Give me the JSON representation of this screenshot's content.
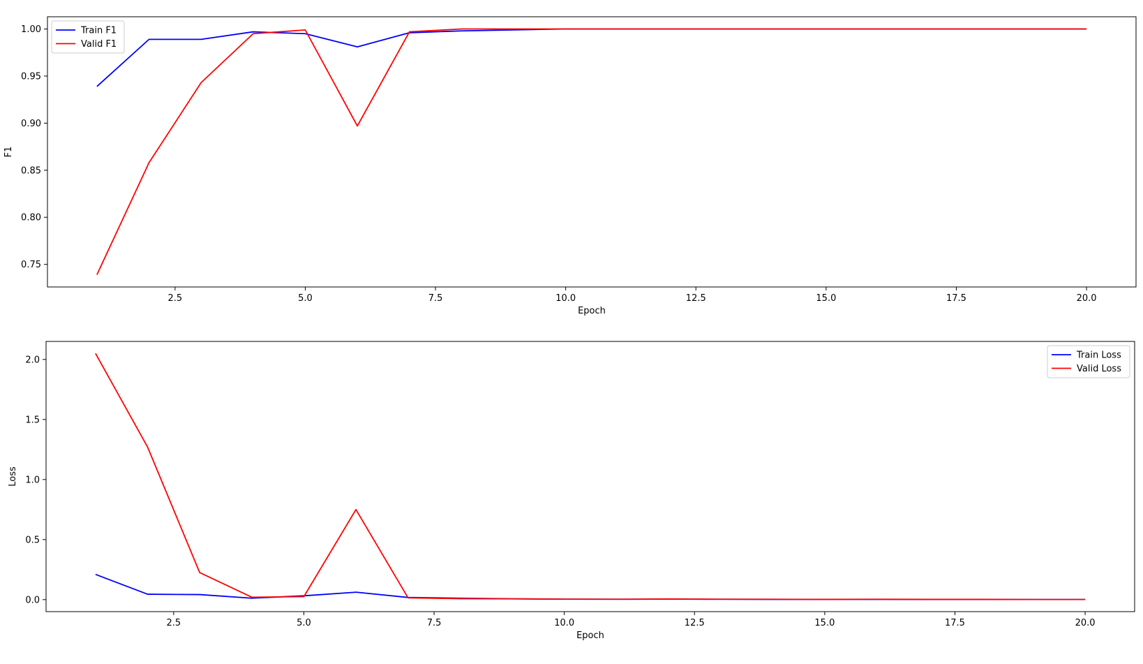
{
  "chart_data": [
    {
      "type": "line",
      "xlabel": "Epoch",
      "ylabel": "F1",
      "xlim": [
        0.05,
        20.95
      ],
      "ylim": [
        0.726,
        1.013
      ],
      "xticks": [
        2.5,
        5.0,
        7.5,
        10.0,
        12.5,
        15.0,
        17.5,
        20.0
      ],
      "xtick_labels": [
        "2.5",
        "5.0",
        "7.5",
        "10.0",
        "12.5",
        "15.0",
        "17.5",
        "20.0"
      ],
      "yticks": [
        0.75,
        0.8,
        0.85,
        0.9,
        0.95,
        1.0
      ],
      "ytick_labels": [
        "0.75",
        "0.80",
        "0.85",
        "0.90",
        "0.95",
        "1.00"
      ],
      "grid": false,
      "legend_position": "upper-left",
      "x": [
        1,
        2,
        3,
        4,
        5,
        6,
        7,
        8,
        9,
        10,
        11,
        12,
        13,
        14,
        15,
        16,
        17,
        18,
        19,
        20
      ],
      "series": [
        {
          "name": "Train F1",
          "color": "#0000ff",
          "values": [
            0.939,
            0.989,
            0.989,
            0.997,
            0.995,
            0.981,
            0.996,
            0.998,
            0.999,
            1.0,
            1.0,
            1.0,
            1.0,
            1.0,
            1.0,
            1.0,
            1.0,
            1.0,
            1.0,
            1.0
          ]
        },
        {
          "name": "Valid F1",
          "color": "#ff0000",
          "values": [
            0.739,
            0.858,
            0.943,
            0.995,
            0.999,
            0.897,
            0.997,
            1.0,
            1.0,
            1.0,
            1.0,
            1.0,
            1.0,
            1.0,
            1.0,
            1.0,
            1.0,
            1.0,
            1.0,
            1.0
          ]
        }
      ]
    },
    {
      "type": "line",
      "xlabel": "Epoch",
      "ylabel": "Loss",
      "xlim": [
        0.05,
        20.95
      ],
      "ylim": [
        -0.1,
        2.15
      ],
      "xticks": [
        2.5,
        5.0,
        7.5,
        10.0,
        12.5,
        15.0,
        17.5,
        20.0
      ],
      "xtick_labels": [
        "2.5",
        "5.0",
        "7.5",
        "10.0",
        "12.5",
        "15.0",
        "17.5",
        "20.0"
      ],
      "yticks": [
        0.0,
        0.5,
        1.0,
        1.5,
        2.0
      ],
      "ytick_labels": [
        "0.0",
        "0.5",
        "1.0",
        "1.5",
        "2.0"
      ],
      "grid": false,
      "legend_position": "upper-right",
      "x": [
        1,
        2,
        3,
        4,
        5,
        6,
        7,
        8,
        9,
        10,
        11,
        12,
        13,
        14,
        15,
        16,
        17,
        18,
        19,
        20
      ],
      "series": [
        {
          "name": "Train Loss",
          "color": "#0000ff",
          "values": [
            0.21,
            0.045,
            0.042,
            0.012,
            0.032,
            0.062,
            0.018,
            0.012,
            0.007,
            0.004,
            0.003,
            0.004,
            0.003,
            0.002,
            0.002,
            0.002,
            0.001,
            0.001,
            0.001,
            0.001
          ]
        },
        {
          "name": "Valid Loss",
          "color": "#ff0000",
          "values": [
            2.05,
            1.27,
            0.225,
            0.02,
            0.025,
            0.75,
            0.015,
            0.008,
            0.006,
            0.004,
            0.003,
            0.005,
            0.003,
            0.003,
            0.002,
            0.003,
            0.002,
            0.002,
            0.001,
            0.001
          ]
        }
      ]
    }
  ]
}
